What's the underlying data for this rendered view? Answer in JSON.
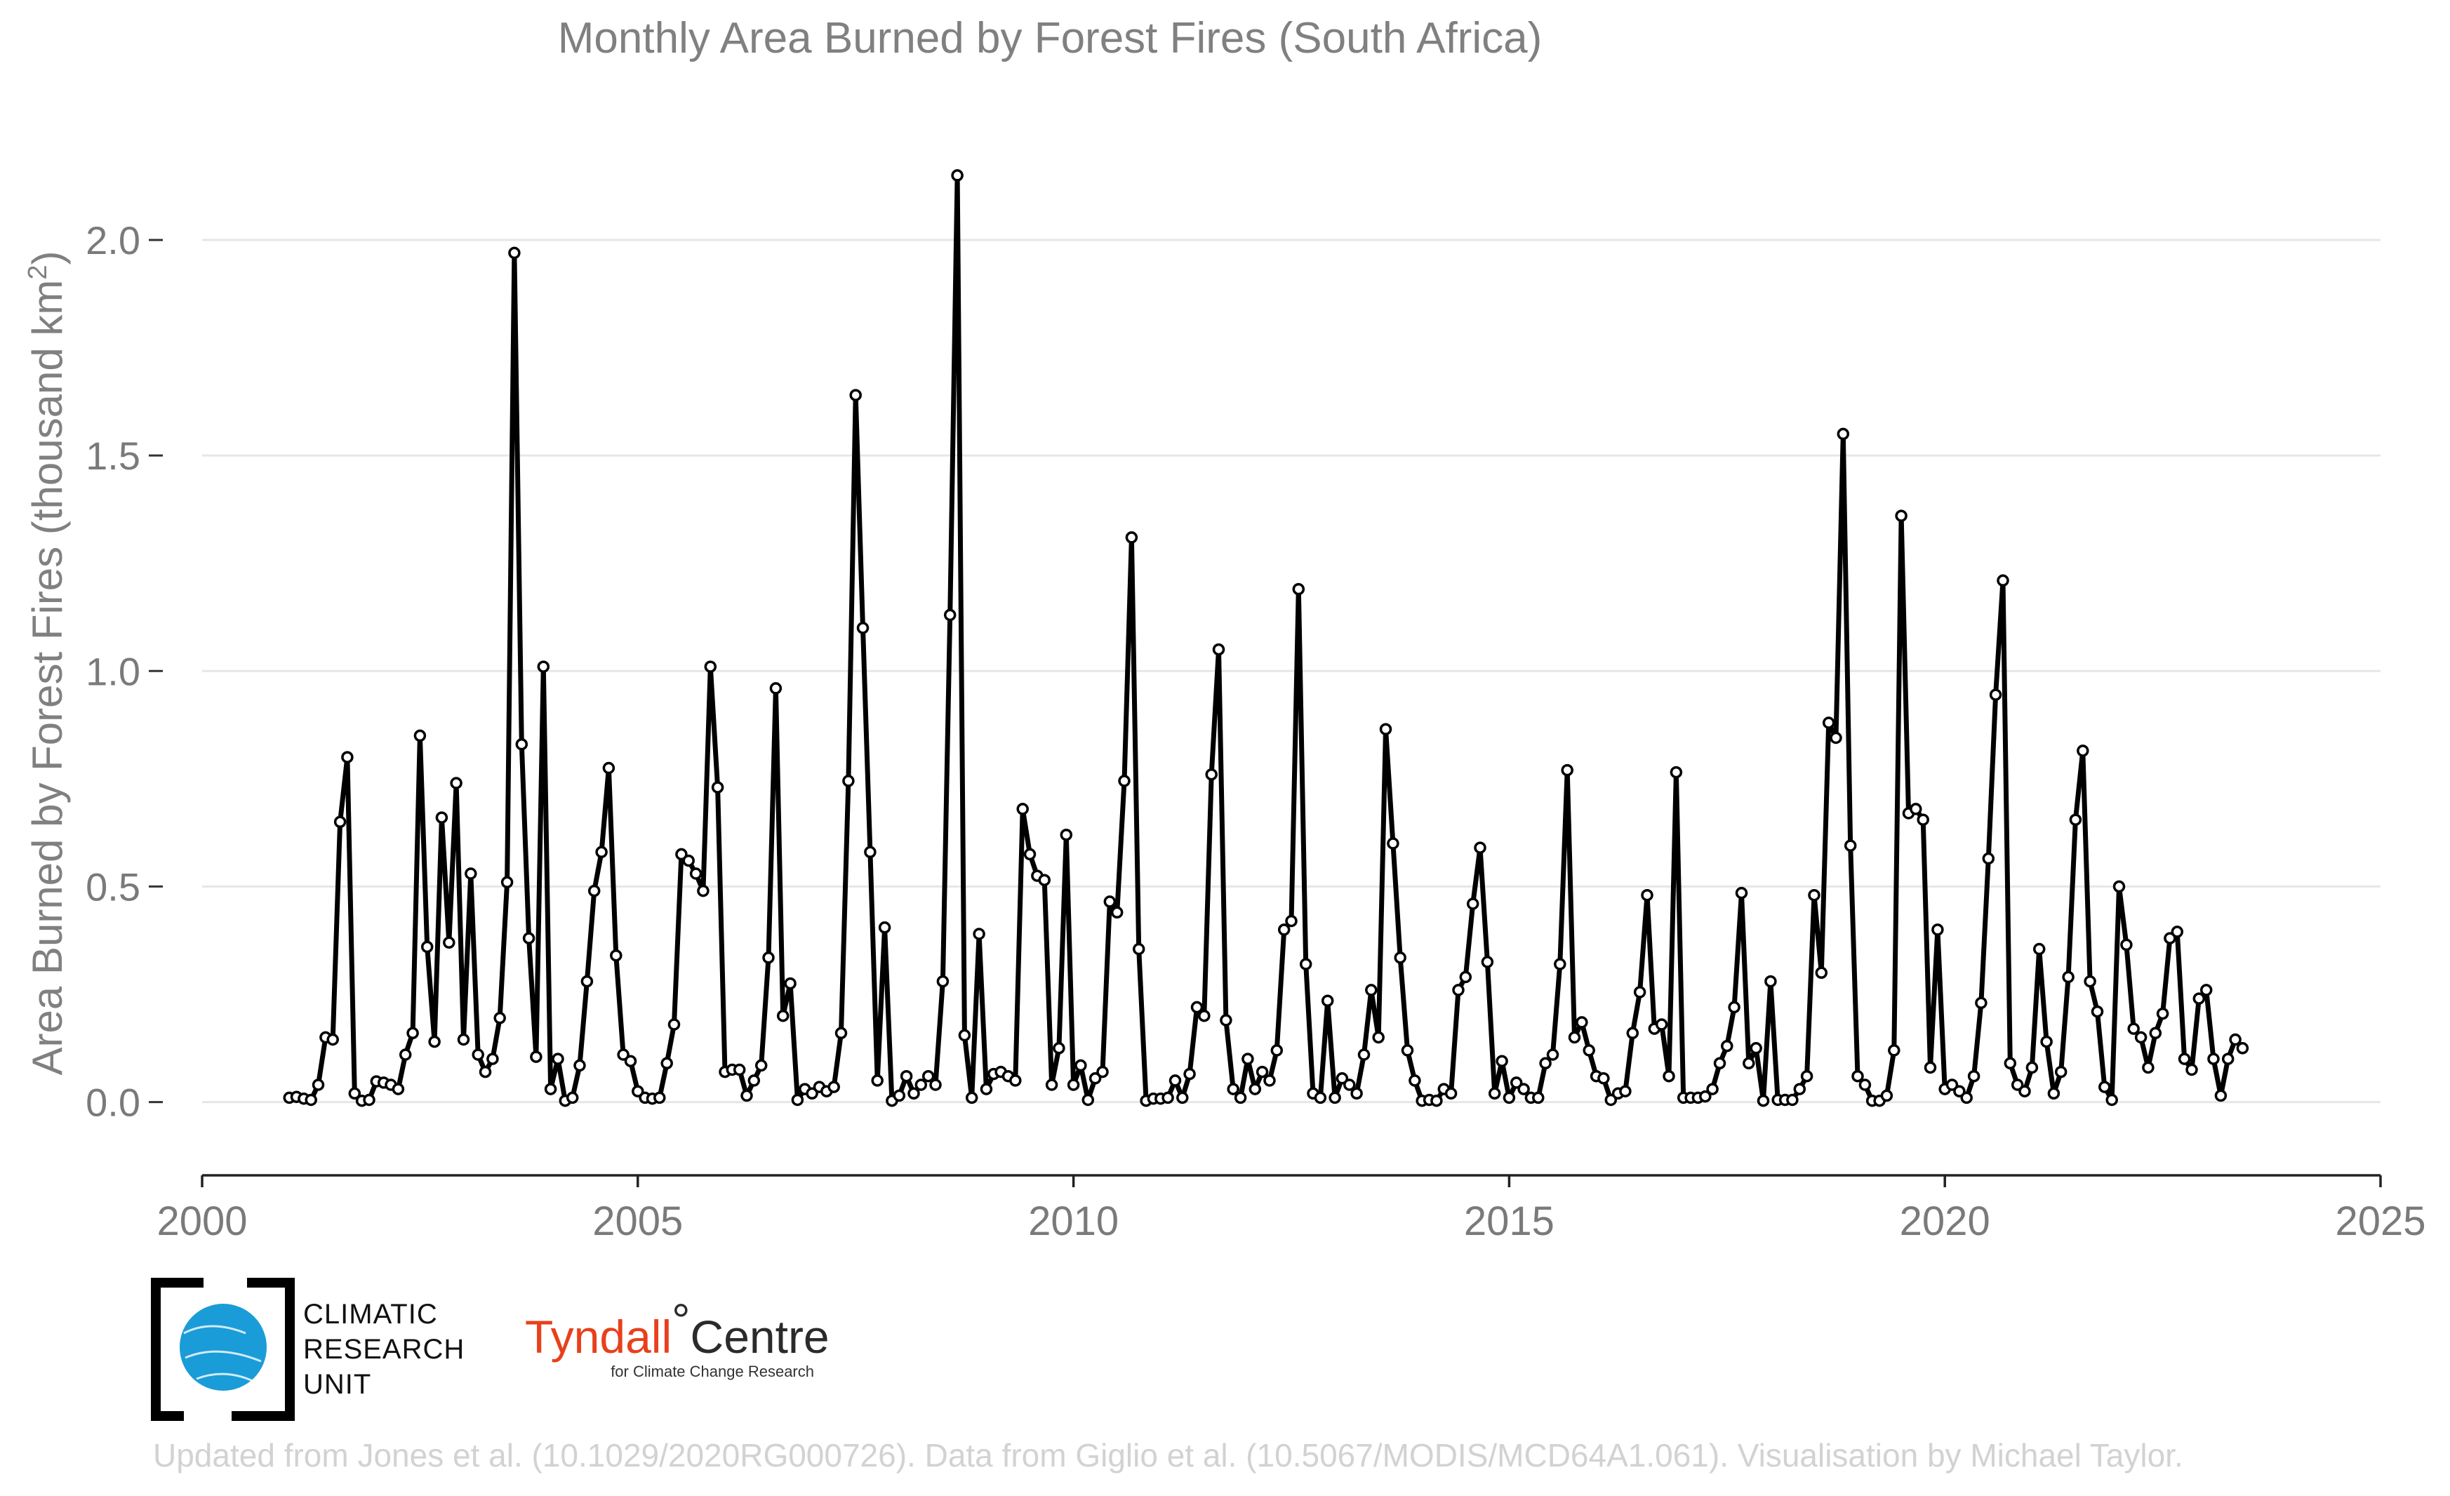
{
  "chart_data": {
    "type": "line",
    "title": "Monthly Area Burned by Forest Fires (South Africa)",
    "ylabel": "Area Burned by Forest Fires (thousand km²)",
    "ylabel_base": "Area Burned by Forest Fires (thousand km",
    "ylabel_sup": "2",
    "ylabel_end": ")",
    "xlim": [
      2000,
      2025
    ],
    "ylim": [
      -0.17,
      2.28
    ],
    "xticks": [
      2000,
      2005,
      2010,
      2015,
      2020,
      2025
    ],
    "xtick_labels": [
      "2000",
      "2005",
      "2010",
      "2015",
      "2020",
      "2025"
    ],
    "yticks": [
      0,
      0.5,
      1.0,
      1.5,
      2.0
    ],
    "ytick_labels": [
      "0.0",
      "0.5",
      "1.0",
      "1.5",
      "2.0"
    ],
    "grid": true,
    "legend": "none",
    "line_color": "#000000",
    "marker_fill": "#ffffff",
    "series": [
      {
        "x_start": "2001-01",
        "frequency": "monthly",
        "values": [
          0.01,
          0.012,
          0.008,
          0.005,
          0.04,
          0.15,
          0.145,
          0.65,
          0.8,
          0.02,
          0.003,
          0.005,
          0.048,
          0.045,
          0.04,
          0.03,
          0.11,
          0.16,
          0.85,
          0.36,
          0.14,
          0.66,
          0.37,
          0.74,
          0.145,
          0.53,
          0.11,
          0.07,
          0.1,
          0.195,
          0.51,
          1.97,
          0.83,
          0.38,
          0.105,
          1.01,
          0.03,
          0.1,
          0.003,
          0.01,
          0.085,
          0.28,
          0.49,
          0.58,
          0.775,
          0.34,
          0.11,
          0.095,
          0.025,
          0.01,
          0.008,
          0.01,
          0.09,
          0.18,
          0.575,
          0.56,
          0.53,
          0.49,
          1.01,
          0.73,
          0.07,
          0.075,
          0.075,
          0.015,
          0.05,
          0.085,
          0.335,
          0.96,
          0.2,
          0.275,
          0.005,
          0.03,
          0.02,
          0.035,
          0.025,
          0.035,
          0.16,
          0.745,
          1.64,
          1.1,
          0.58,
          0.05,
          0.405,
          0.003,
          0.015,
          0.06,
          0.02,
          0.04,
          0.06,
          0.04,
          0.28,
          1.13,
          2.15,
          0.155,
          0.01,
          0.39,
          0.03,
          0.065,
          0.07,
          0.06,
          0.05,
          0.68,
          0.575,
          0.525,
          0.515,
          0.04,
          0.125,
          0.62,
          0.04,
          0.085,
          0.005,
          0.055,
          0.07,
          0.465,
          0.44,
          0.745,
          1.31,
          0.355,
          0.003,
          0.008,
          0.008,
          0.01,
          0.05,
          0.01,
          0.065,
          0.22,
          0.2,
          0.76,
          1.05,
          0.19,
          0.03,
          0.01,
          0.1,
          0.03,
          0.07,
          0.05,
          0.12,
          0.4,
          0.42,
          1.19,
          0.32,
          0.02,
          0.01,
          0.235,
          0.01,
          0.055,
          0.04,
          0.02,
          0.11,
          0.26,
          0.15,
          0.865,
          0.6,
          0.335,
          0.12,
          0.05,
          0.003,
          0.005,
          0.003,
          0.03,
          0.02,
          0.26,
          0.29,
          0.46,
          0.59,
          0.325,
          0.02,
          0.095,
          0.01,
          0.045,
          0.03,
          0.01,
          0.01,
          0.09,
          0.11,
          0.32,
          0.77,
          0.15,
          0.185,
          0.12,
          0.06,
          0.055,
          0.005,
          0.02,
          0.025,
          0.16,
          0.255,
          0.48,
          0.17,
          0.18,
          0.06,
          0.765,
          0.01,
          0.01,
          0.01,
          0.013,
          0.03,
          0.09,
          0.13,
          0.22,
          0.485,
          0.09,
          0.125,
          0.003,
          0.28,
          0.005,
          0.005,
          0.005,
          0.03,
          0.06,
          0.48,
          0.3,
          0.88,
          0.845,
          1.55,
          0.595,
          0.06,
          0.04,
          0.003,
          0.003,
          0.015,
          0.12,
          1.36,
          0.67,
          0.68,
          0.655,
          0.08,
          0.4,
          0.03,
          0.04,
          0.025,
          0.01,
          0.06,
          0.23,
          0.565,
          0.945,
          1.21,
          0.09,
          0.04,
          0.025,
          0.08,
          0.355,
          0.14,
          0.02,
          0.07,
          0.29,
          0.655,
          0.815,
          0.28,
          0.21,
          0.035,
          0.005,
          0.5,
          0.365,
          0.17,
          0.15,
          0.08,
          0.16,
          0.205,
          0.38,
          0.395,
          0.1,
          0.075,
          0.24,
          0.26,
          0.1,
          0.015,
          0.1,
          0.145,
          0.125
        ]
      }
    ]
  },
  "logos": {
    "cru": {
      "line1": "CLIMATIC",
      "line2": "RESEARCH",
      "line3": "UNIT",
      "globe_color": "#1a9cd8",
      "frame_color": "#000000"
    },
    "tyndall": {
      "name": "Tyndall",
      "degree": "°",
      "centre": "Centre",
      "subtitle": "for Climate Change Research",
      "name_color": "#e8401c"
    }
  },
  "credit": "Updated from Jones et al. (10.1029/2020RG000726). Data from Giglio et al. (10.5067/MODIS/MCD64A1.061). Visualisation by Michael Taylor."
}
